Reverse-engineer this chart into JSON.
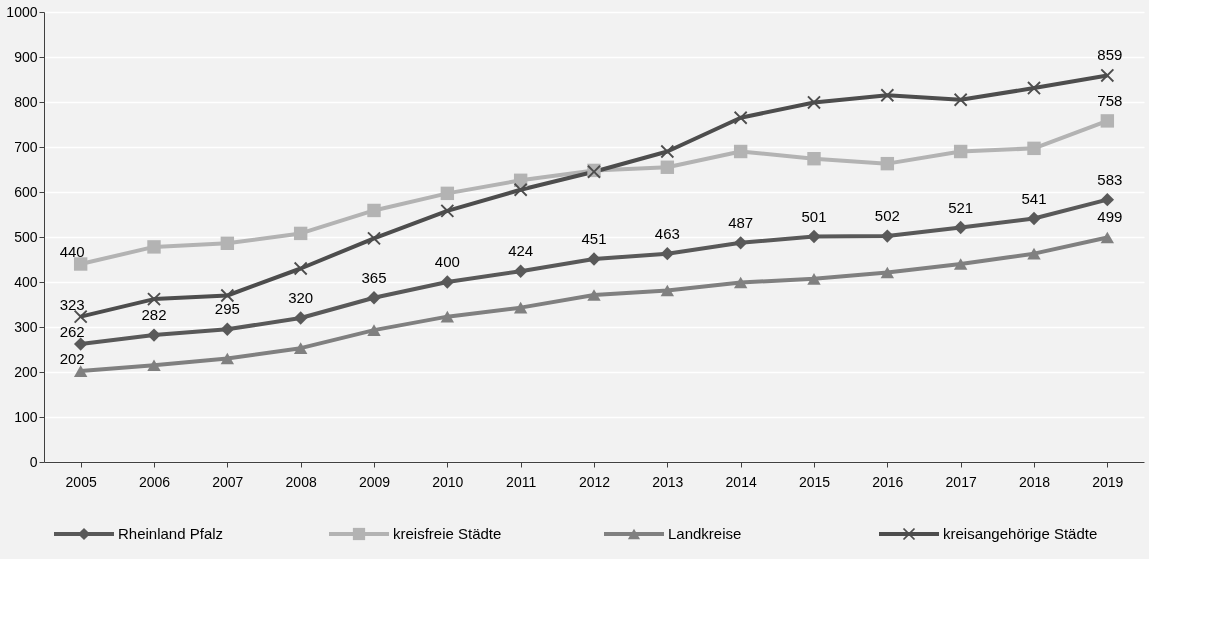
{
  "chart_data": {
    "type": "line",
    "categories": [
      "2005",
      "2006",
      "2007",
      "2008",
      "2009",
      "2010",
      "2011",
      "2012",
      "2013",
      "2014",
      "2015",
      "2016",
      "2017",
      "2018",
      "2019"
    ],
    "series": [
      {
        "name": "Rheinland Pfalz",
        "color": "#595959",
        "marker": "diamond",
        "values": [
          262,
          282,
          295,
          320,
          365,
          400,
          424,
          451,
          463,
          487,
          501,
          502,
          521,
          541,
          583
        ],
        "value_labels": [
          "262",
          "282",
          "295",
          "320",
          "365",
          "400",
          "424",
          "451",
          "463",
          "487",
          "501",
          "502",
          "521",
          "541",
          "583"
        ]
      },
      {
        "name": "kreisfreie Städte",
        "color": "#b3b3b3",
        "marker": "square",
        "values": [
          440,
          478,
          486,
          508,
          559,
          597,
          626,
          648,
          655,
          690,
          674,
          663,
          690,
          697,
          758
        ],
        "value_labels": [
          "440",
          null,
          null,
          null,
          null,
          null,
          null,
          null,
          null,
          null,
          null,
          null,
          null,
          null,
          "758"
        ]
      },
      {
        "name": "Landkreise",
        "color": "#808080",
        "marker": "triangle",
        "values": [
          202,
          215,
          230,
          253,
          293,
          323,
          343,
          371,
          381,
          399,
          407,
          421,
          440,
          463,
          499
        ],
        "value_labels": [
          "202",
          null,
          null,
          null,
          null,
          null,
          null,
          null,
          null,
          null,
          null,
          null,
          null,
          null,
          "499"
        ]
      },
      {
        "name": "kreisangehörige Städte",
        "color": "#4d4d4d",
        "marker": "cross",
        "values": [
          323,
          362,
          370,
          430,
          497,
          558,
          605,
          645,
          690,
          765,
          799,
          815,
          805,
          831,
          859
        ],
        "value_labels": [
          "323",
          null,
          null,
          null,
          null,
          null,
          null,
          null,
          null,
          null,
          null,
          null,
          null,
          null,
          "859"
        ]
      }
    ],
    "ylim": [
      0,
      1000
    ],
    "yticks": [
      0,
      100,
      200,
      300,
      400,
      500,
      600,
      700,
      800,
      900,
      1000
    ],
    "grid": "y",
    "legend": "bottom",
    "line_style": "solid"
  }
}
